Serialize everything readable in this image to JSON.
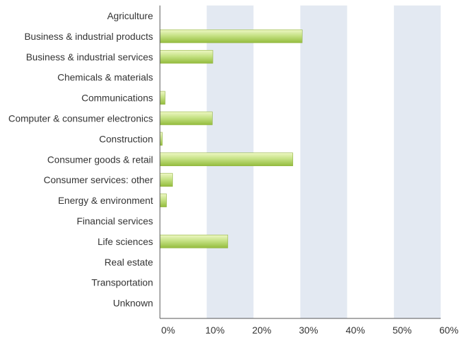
{
  "chart_data": {
    "type": "bar",
    "orientation": "horizontal",
    "title": "",
    "xlabel": "",
    "ylabel": "",
    "categories": [
      "Agriculture",
      "Business & industrial products",
      "Business & industrial services",
      "Chemicals & materials",
      "Communications",
      "Computer & consumer electronics",
      "Construction",
      "Consumer goods & retail",
      "Consumer services: other",
      "Energy & environment",
      "Financial services",
      "Life sciences",
      "Real estate",
      "Transportation",
      "Unknown"
    ],
    "values": [
      0,
      30.4,
      11.3,
      0,
      1.1,
      11.2,
      0.5,
      28.4,
      2.7,
      1.4,
      0,
      14.5,
      0,
      0,
      0
    ],
    "value_unit": "%",
    "xlim": [
      0,
      60
    ],
    "xticks": [
      "0%",
      "10%",
      "20%",
      "30%",
      "40%",
      "50%",
      "60%"
    ],
    "grid": "alternating vertical bands",
    "legend": "none",
    "colors": {
      "bar_light": "#eef7c4",
      "bar_mid": "#c6e285",
      "bar_dark": "#94bc3d",
      "bar_edge": "#8fb23c",
      "band": "#e3e9f2",
      "axis": "#555555",
      "text": "#333333"
    }
  }
}
